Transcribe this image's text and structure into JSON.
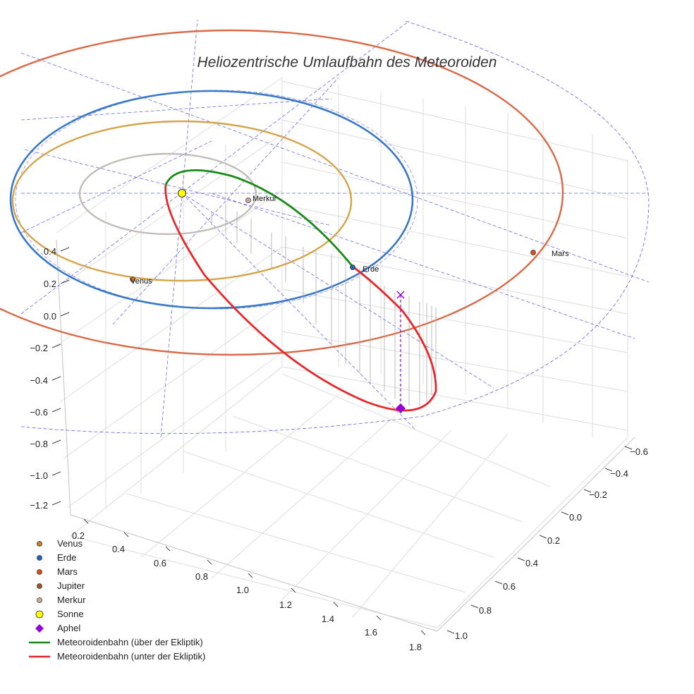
{
  "chart_data": {
    "type": "line",
    "title": "Heliozentrische Umlaufbahn des Meteoroiden",
    "axes": {
      "z_ticks": [
        "0.4",
        "0.2",
        "0.0",
        "−0.2",
        "−0.4",
        "−0.6",
        "−0.8",
        "−1.0",
        "−1.2"
      ],
      "x_ticks": [
        "0.2",
        "0.4",
        "0.6",
        "0.8",
        "1.0",
        "1.2",
        "1.4",
        "1.6",
        "1.8"
      ],
      "y_ticks": [
        "−0.6",
        "−0.4",
        "−0.2",
        "0.0",
        "0.2",
        "0.4",
        "0.6",
        "0.8",
        "1.0"
      ],
      "grid": true
    },
    "point_labels": {
      "merkur": "Merkur",
      "venus": "Venus",
      "erde": "Erde",
      "mars": "Mars"
    },
    "legend": {
      "placement": "bottom-left",
      "entries": [
        {
          "label": "Venus",
          "color": "#c8782a",
          "marker": "circle"
        },
        {
          "label": "Erde",
          "color": "#1f66b5",
          "marker": "circle"
        },
        {
          "label": "Mars",
          "color": "#d9501f",
          "marker": "circle"
        },
        {
          "label": "Jupiter",
          "color": "#a0522d",
          "marker": "circle"
        },
        {
          "label": "Merkur",
          "color": "#c9aaa0",
          "marker": "circle"
        },
        {
          "label": "Sonne",
          "color": "#ffff00",
          "marker": "circle"
        },
        {
          "label": "Aphel",
          "color": "#9400d3",
          "marker": "diamond"
        },
        {
          "label": "Meteoroidenbahn (über der Ekliptik)",
          "color": "#1a8a1a",
          "marker": "line"
        },
        {
          "label": "Meteoroidenbahn (unter der Ekliptik)",
          "color": "#e8262a",
          "marker": "line"
        }
      ]
    },
    "colors": {
      "mercury_orbit": "#c0bcb8",
      "venus_orbit": "#d4a44a",
      "earth_orbit": "#3a78c8",
      "mars_orbit": "#d86a48",
      "projection_lines": "#3a3ae0",
      "grid": "#dddddd"
    }
  }
}
